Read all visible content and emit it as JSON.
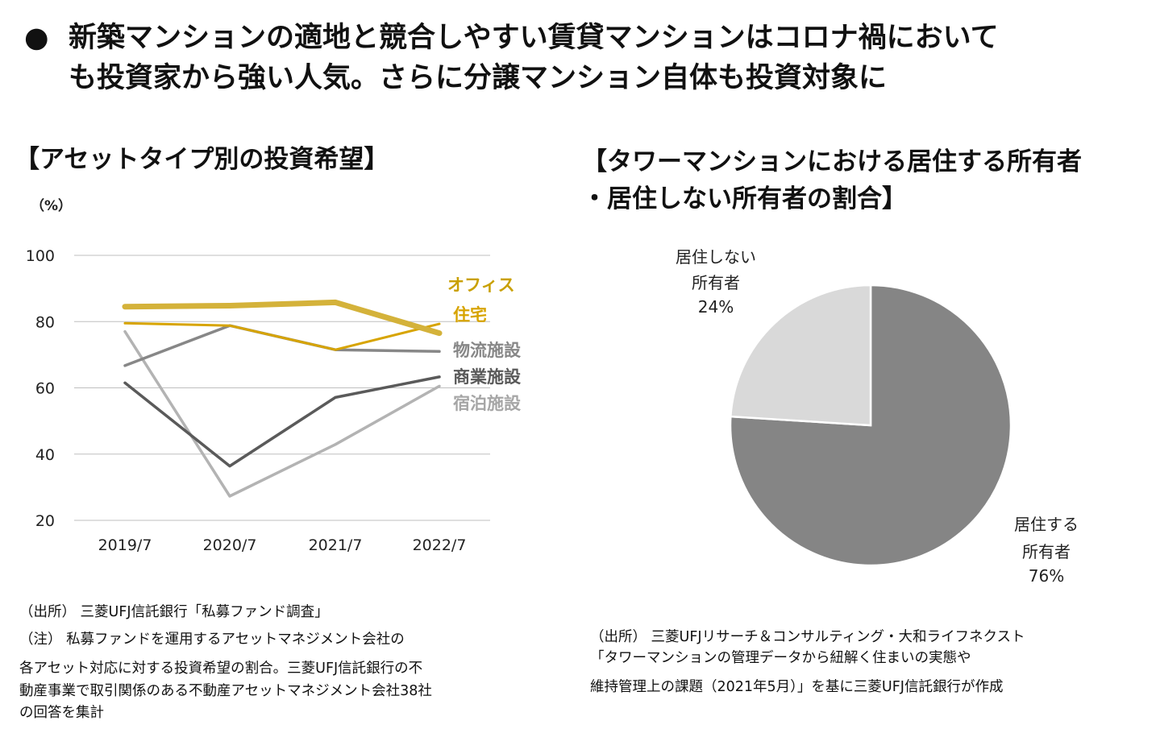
{
  "headline": {
    "bullet": "●",
    "line1": "新築マンションの適地と競合しやすい賃貸マンションはコロナ禍において",
    "line2": "も投資家から強い人気。さらに分譲マンション自体も投資対象に"
  },
  "left": {
    "title": "【アセットタイプ別の投資希望】",
    "source1": "（出所） 三菱UFJ信託銀行「私募ファンド調査」",
    "note1": "（注） 私募ファンドを運用するアセットマネジメント会社の",
    "note2": "各アセット対応に対する投資希望の割合。三菱UFJ信託銀行の不",
    "note3": "動産事業で取引関係のある不動産アセットマネジメント会社38社",
    "note4": "の回答を集計"
  },
  "right": {
    "title1": "【タワーマンションにおける居住する所有者",
    "title2": "・居住しない所有者の割合】",
    "source1": "（出所） 三菱UFJリサーチ＆コンサルティング・大和ライフネクスト",
    "source2": "「タワーマンションの管理データから紐解く住まいの実態や",
    "source3": "維持管理上の課題（2021年5月）」を基に三菱UFJ信託銀行が作成"
  },
  "chart_data": [
    {
      "type": "line",
      "title": "【アセットタイプ別の投資希望】",
      "unit_label": "（%）",
      "categories": [
        "2019/7",
        "2020/7",
        "2021/7",
        "2022/7"
      ],
      "ylim": [
        20,
        100
      ],
      "yticks": [
        "20",
        "40",
        "60",
        "80",
        "100"
      ],
      "grid": true,
      "series": [
        {
          "name": "オフィス",
          "values": [
            84.5,
            84.8,
            85.8,
            76.5
          ],
          "color": "#d4b23a",
          "label_color": "#c9a000"
        },
        {
          "name": "住宅",
          "values": [
            79.5,
            78.8,
            71.5,
            79.3
          ],
          "color": "#d7a400",
          "label_color": "#d7a400"
        },
        {
          "name": "物流施設",
          "values": [
            66.7,
            78.8,
            71.5,
            71.0
          ],
          "color": "#878787",
          "label_color": "#878787"
        },
        {
          "name": "商業施設",
          "values": [
            61.5,
            36.4,
            57.1,
            63.3
          ],
          "color": "#5a5a5a",
          "label_color": "#595959"
        },
        {
          "name": "宿泊施設",
          "values": [
            77.0,
            27.3,
            42.9,
            60.5
          ],
          "color": "#b3b3b3",
          "label_color": "#a6a6a6"
        }
      ]
    },
    {
      "type": "pie",
      "title": "【タワーマンションにおける居住する所有者・居住しない所有者の割合】",
      "slices": [
        {
          "label_line1": "居住する",
          "label_line2": "所有者",
          "pct_label": "76%",
          "value": 76,
          "color": "#858585"
        },
        {
          "label_line1": "居住しない",
          "label_line2": "所有者",
          "pct_label": "24%",
          "value": 24,
          "color": "#d9d9d9"
        }
      ]
    }
  ]
}
